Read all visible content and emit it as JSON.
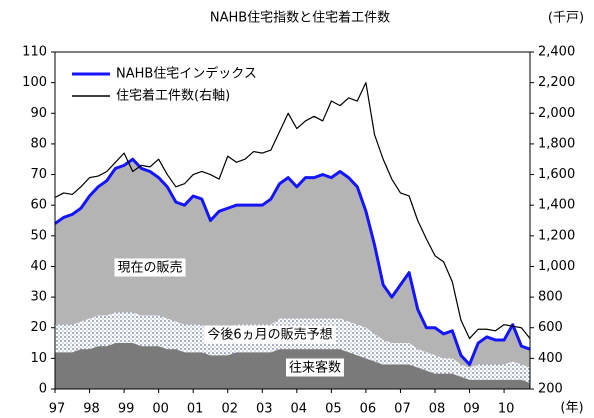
{
  "chart_data": {
    "type": "stacked-area-line",
    "title": "NAHB住宅指数と住宅着工件数",
    "y2_unit": "(千戸)",
    "x_unit": "(年)",
    "annotations": [
      "現在の販売",
      "今後6ヵ月の販売予想",
      "往来客数"
    ],
    "x": [
      1997,
      1997.25,
      1997.5,
      1997.75,
      1998,
      1998.25,
      1998.5,
      1998.75,
      1999,
      1999.25,
      1999.5,
      1999.75,
      2000,
      2000.25,
      2000.5,
      2000.75,
      2001,
      2001.25,
      2001.5,
      2001.75,
      2002,
      2002.25,
      2002.5,
      2002.75,
      2003,
      2003.25,
      2003.5,
      2003.75,
      2004,
      2004.25,
      2004.5,
      2004.75,
      2005,
      2005.25,
      2005.5,
      2005.75,
      2006,
      2006.25,
      2006.5,
      2006.75,
      2007,
      2007.25,
      2007.5,
      2007.75,
      2008,
      2008.25,
      2008.5,
      2008.75,
      2009,
      2009.25,
      2009.5,
      2009.75,
      2010,
      2010.25,
      2010.5,
      2010.75
    ],
    "areas": [
      {
        "name": "往来客数",
        "color": "#7a7a7a",
        "values": [
          12,
          12,
          12,
          13,
          13,
          14,
          14,
          15,
          15,
          15,
          14,
          14,
          14,
          13,
          13,
          12,
          12,
          12,
          11,
          11,
          11,
          12,
          12,
          12,
          12,
          12,
          13,
          13,
          13,
          13,
          13,
          13,
          13,
          13,
          12,
          11,
          10,
          9,
          8,
          8,
          8,
          8,
          7,
          6,
          5,
          5,
          5,
          4,
          3,
          3,
          3,
          3,
          3,
          3,
          3,
          2
        ]
      },
      {
        "name": "今後6ヵ月の販売予想",
        "color": "#7080b0",
        "values": [
          9,
          9,
          9,
          9,
          10,
          10,
          10,
          10,
          10,
          10,
          10,
          10,
          10,
          10,
          9,
          9,
          9,
          9,
          8,
          9,
          9,
          9,
          9,
          9,
          9,
          9,
          10,
          10,
          10,
          10,
          10,
          10,
          10,
          10,
          10,
          10,
          10,
          9,
          8,
          7,
          7,
          7,
          6,
          6,
          6,
          5,
          5,
          4,
          4,
          5,
          5,
          5,
          5,
          6,
          5,
          5
        ]
      },
      {
        "name": "現在の販売",
        "color": "#b4b4b4",
        "values": [
          33,
          35,
          36,
          37,
          40,
          42,
          44,
          47,
          48,
          50,
          48,
          47,
          45,
          43,
          39,
          39,
          42,
          41,
          36,
          38,
          39,
          39,
          39,
          39,
          39,
          41,
          44,
          46,
          43,
          46,
          46,
          47,
          46,
          48,
          47,
          45,
          38,
          29,
          18,
          15,
          19,
          23,
          13,
          8,
          9,
          8,
          9,
          3,
          1,
          7,
          9,
          8,
          8,
          12,
          6,
          6
        ]
      }
    ],
    "series": [
      {
        "name": "NAHB住宅インデックス",
        "color": "#1414ff",
        "values": [
          54,
          56,
          57,
          59,
          63,
          66,
          68,
          72,
          73,
          75,
          72,
          71,
          69,
          66,
          61,
          60,
          63,
          62,
          55,
          58,
          59,
          60,
          60,
          60,
          60,
          62,
          67,
          69,
          66,
          69,
          69,
          70,
          69,
          71,
          69,
          66,
          58,
          47,
          34,
          30,
          34,
          38,
          26,
          20,
          20,
          18,
          19,
          11,
          8,
          15,
          17,
          16,
          16,
          21,
          14,
          13
        ]
      },
      {
        "name": "住宅着工件数(右軸)",
        "color": "#000000",
        "axis": "y2",
        "values": [
          1450,
          1480,
          1470,
          1520,
          1580,
          1590,
          1620,
          1680,
          1740,
          1620,
          1660,
          1650,
          1700,
          1600,
          1520,
          1540,
          1600,
          1620,
          1600,
          1570,
          1720,
          1680,
          1700,
          1750,
          1740,
          1760,
          1880,
          2000,
          1900,
          1950,
          1980,
          1950,
          2080,
          2050,
          2100,
          2080,
          2200,
          1860,
          1700,
          1570,
          1480,
          1460,
          1300,
          1180,
          1070,
          1030,
          900,
          650,
          530,
          590,
          590,
          580,
          620,
          610,
          600,
          530
        ]
      }
    ],
    "xlim": [
      1997,
      2010.75
    ],
    "xticks": [
      {
        "value": 1997,
        "label": "97"
      },
      {
        "value": 1998,
        "label": "98"
      },
      {
        "value": 1999,
        "label": "99"
      },
      {
        "value": 2000,
        "label": "00"
      },
      {
        "value": 2001,
        "label": "01"
      },
      {
        "value": 2002,
        "label": "02"
      },
      {
        "value": 2003,
        "label": "03"
      },
      {
        "value": 2004,
        "label": "04"
      },
      {
        "value": 2005,
        "label": "05"
      },
      {
        "value": 2006,
        "label": "06"
      },
      {
        "value": 2007,
        "label": "07"
      },
      {
        "value": 2008,
        "label": "08"
      },
      {
        "value": 2009,
        "label": "09"
      },
      {
        "value": 2010,
        "label": "10"
      }
    ],
    "ylim": [
      0,
      110
    ],
    "yticks": [
      0,
      10,
      20,
      30,
      40,
      50,
      60,
      70,
      80,
      90,
      100,
      110
    ],
    "y2lim": [
      200,
      2400
    ],
    "y2ticks": [
      200,
      400,
      600,
      800,
      {
        "value": 1000,
        "label": "1,000"
      },
      {
        "value": 1200,
        "label": "1,200"
      },
      {
        "value": 1400,
        "label": "1,400"
      },
      {
        "value": 1600,
        "label": "1,600"
      },
      {
        "value": 1800,
        "label": "1,800"
      },
      {
        "value": 2000,
        "label": "2,000"
      },
      {
        "value": 2200,
        "label": "2,200"
      },
      {
        "value": 2400,
        "label": "2,400"
      }
    ],
    "grid": false
  }
}
